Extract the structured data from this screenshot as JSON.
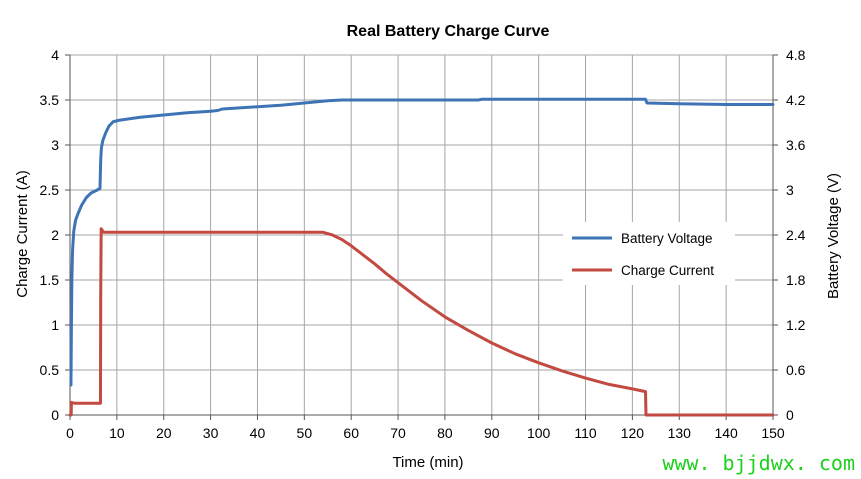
{
  "watermark": {
    "text": "www. bjjdwx. com",
    "color": "#1ed01e"
  },
  "chart_data": {
    "type": "line",
    "title": "Real Battery Charge Curve",
    "xlabel": "Time (min)",
    "ylabel": "Charge Current (A)",
    "y2label": "Battery Voltage (V)",
    "xlim": [
      0,
      150
    ],
    "ylim": [
      0,
      4
    ],
    "y2lim": [
      0,
      4.8
    ],
    "x_ticks": [
      0,
      10,
      20,
      30,
      40,
      50,
      60,
      70,
      80,
      90,
      100,
      110,
      120,
      130,
      140,
      150
    ],
    "y_ticks": [
      0,
      0.5,
      1,
      1.5,
      2,
      2.5,
      3,
      3.5,
      4
    ],
    "y2_ticks": [
      0,
      0.6,
      1.2,
      1.8,
      2.4,
      3,
      3.6,
      4.2,
      4.8
    ],
    "grid": true,
    "grid_color": "#a6a6a6",
    "axis_color": "#555555",
    "legend": "right",
    "series": [
      {
        "name": "Battery Voltage",
        "axis": "right",
        "color": "#3e74b6",
        "x": [
          0.2,
          0.3,
          0.4,
          0.55,
          0.8,
          1.2,
          1.8,
          2.5,
          3.5,
          4.5,
          5.5,
          6.4,
          6.55,
          6.7,
          7.0,
          7.6,
          8.3,
          9.2,
          10.5,
          15,
          20,
          25,
          30,
          31.5,
          32.5,
          40,
          45,
          50,
          55,
          58,
          87,
          88,
          122.8,
          123.1,
          130,
          140,
          150
        ],
        "y": [
          0.4,
          1.2,
          1.8,
          2.2,
          2.45,
          2.6,
          2.7,
          2.8,
          2.9,
          2.96,
          2.99,
          3.02,
          3.4,
          3.56,
          3.66,
          3.76,
          3.85,
          3.91,
          3.93,
          3.97,
          4.0,
          4.03,
          4.05,
          4.06,
          4.08,
          4.11,
          4.13,
          4.16,
          4.19,
          4.2,
          4.2,
          4.21,
          4.21,
          4.16,
          4.15,
          4.14,
          4.14
        ]
      },
      {
        "name": "Charge Current",
        "axis": "left",
        "color": "#c24a40",
        "x": [
          0,
          0.25,
          0.3,
          1,
          6.5,
          6.55,
          6.65,
          6.9,
          7.2,
          54,
          56,
          58,
          60,
          62.5,
          65,
          67.5,
          70,
          75,
          80,
          85,
          90,
          95,
          100,
          105,
          110,
          115,
          120,
          122.8,
          122.9,
          150
        ],
        "y": [
          0,
          0,
          0.14,
          0.13,
          0.13,
          1.3,
          2.07,
          2.05,
          2.03,
          2.03,
          2.0,
          1.95,
          1.88,
          1.78,
          1.68,
          1.57,
          1.47,
          1.27,
          1.09,
          0.94,
          0.8,
          0.68,
          0.58,
          0.49,
          0.41,
          0.34,
          0.29,
          0.26,
          0,
          0
        ]
      }
    ]
  }
}
